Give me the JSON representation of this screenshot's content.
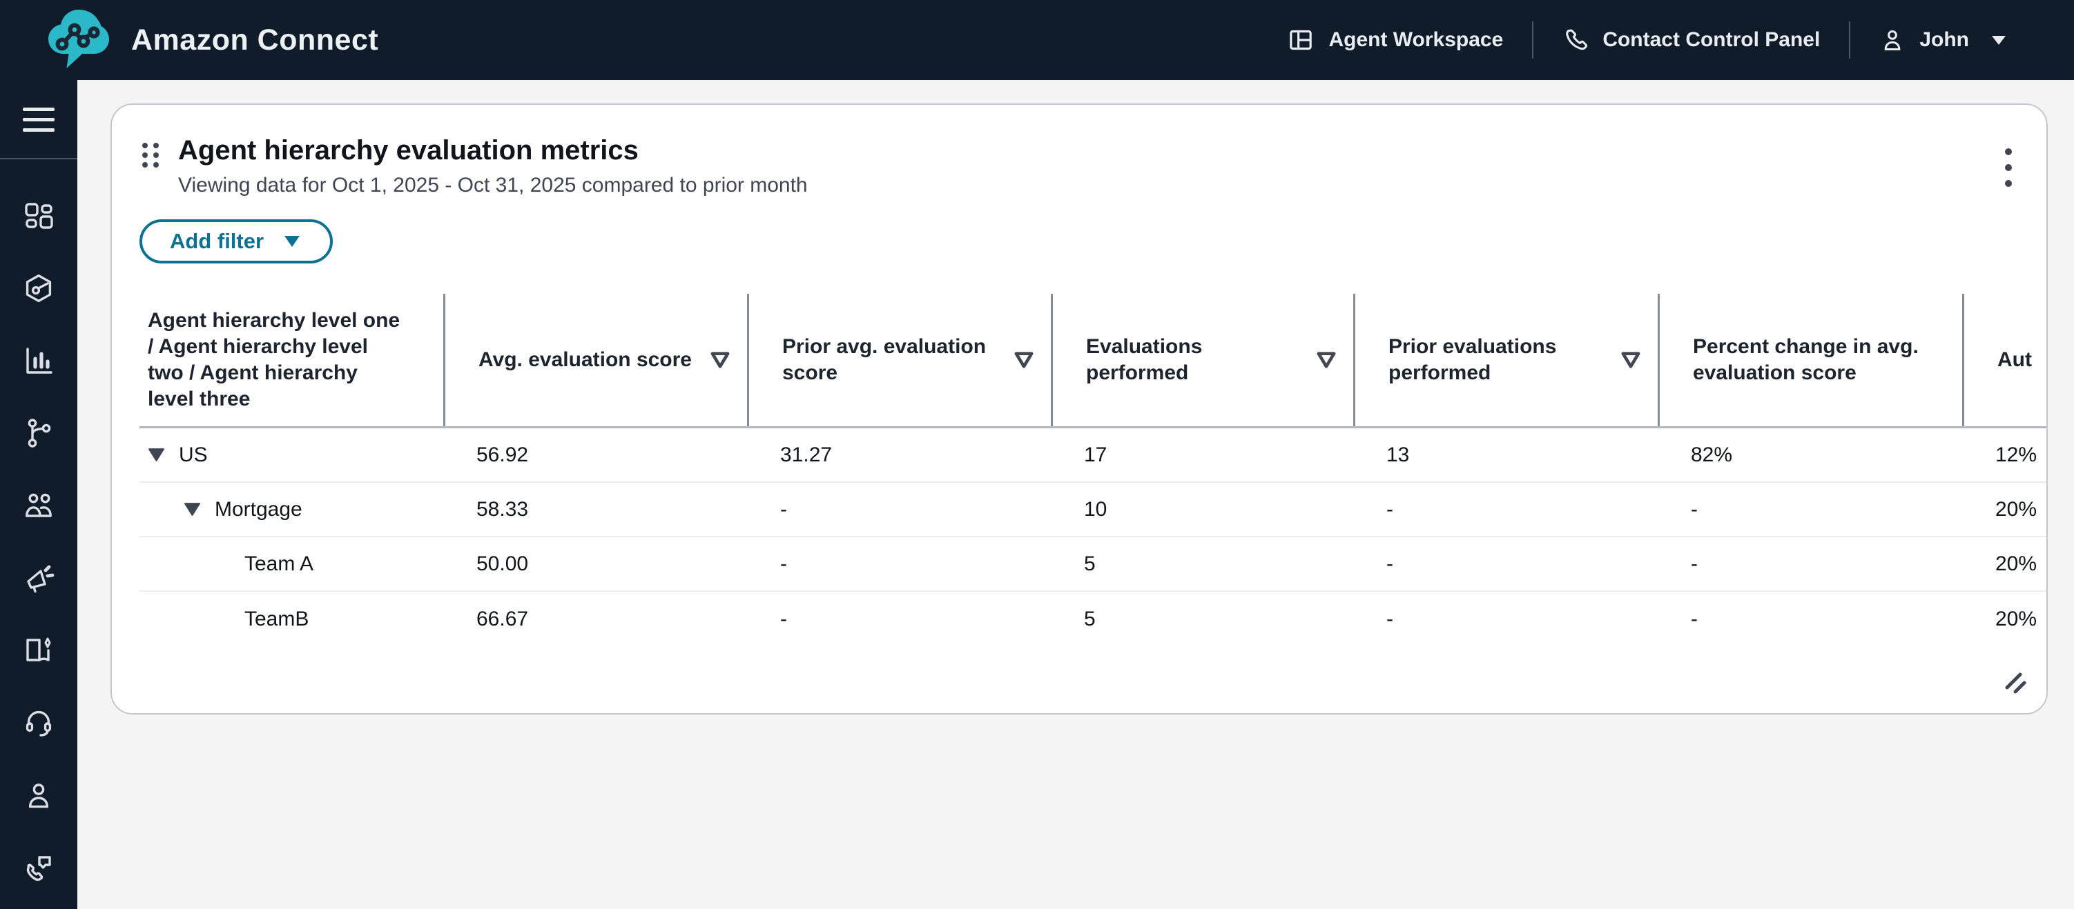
{
  "topbar": {
    "brand": "Amazon Connect",
    "nav": [
      {
        "label": "Agent Workspace",
        "icon": "workspace-panels-icon"
      },
      {
        "label": "Contact Control Panel",
        "icon": "phone-icon"
      },
      {
        "label": "John",
        "icon": "person-icon",
        "has_caret": true
      }
    ]
  },
  "sidebar": {
    "icons": [
      "apps-grid-icon",
      "hexagon-gauge-icon",
      "bar-chart-icon",
      "branch-icon",
      "users-icon",
      "megaphone-icon",
      "book-sparkle-icon",
      "headset-icon",
      "person-icon",
      "phone-chat-icon"
    ]
  },
  "card": {
    "title": "Agent hierarchy evaluation metrics",
    "subtitle": "Viewing data for Oct 1, 2025 - Oct 31, 2025 compared to prior month",
    "add_filter_label": "Add filter",
    "table": {
      "columns": [
        {
          "label": "Agent hierarchy level one / Agent hierarchy level two / Agent hierarchy level three",
          "filter": false
        },
        {
          "label": "Avg. evaluation score",
          "filter": true
        },
        {
          "label": "Prior avg. evaluation score",
          "filter": true
        },
        {
          "label": "Evaluations performed",
          "filter": true
        },
        {
          "label": "Prior evaluations performed",
          "filter": true
        },
        {
          "label": "Percent change in avg. evaluation score",
          "filter": false
        },
        {
          "label": "Aut",
          "filter": false
        }
      ],
      "rows": [
        {
          "level": 1,
          "expandable": true,
          "name": "US",
          "values": [
            "56.92",
            "31.27",
            "17",
            "13",
            "82%",
            "12%"
          ]
        },
        {
          "level": 2,
          "expandable": true,
          "name": "Mortgage",
          "values": [
            "58.33",
            "-",
            "10",
            "-",
            "-",
            "20%"
          ]
        },
        {
          "level": 3,
          "expandable": false,
          "name": "Team A",
          "values": [
            "50.00",
            "-",
            "5",
            "-",
            "-",
            "20%"
          ]
        },
        {
          "level": 3,
          "expandable": false,
          "name": "TeamB",
          "values": [
            "66.67",
            "-",
            "5",
            "-",
            "-",
            "20%"
          ]
        }
      ]
    }
  },
  "colors": {
    "topbar_bg": "#111c2b",
    "logo_teal": "#2bb8c9",
    "page_bg": "#f4f4f5",
    "accent_teal": "#0d7191",
    "card_border": "#c3c7cd",
    "header_rule": "#868d99",
    "row_border": "#ebedf0",
    "text_dark": "#11161d",
    "text_muted": "#3f4652"
  }
}
